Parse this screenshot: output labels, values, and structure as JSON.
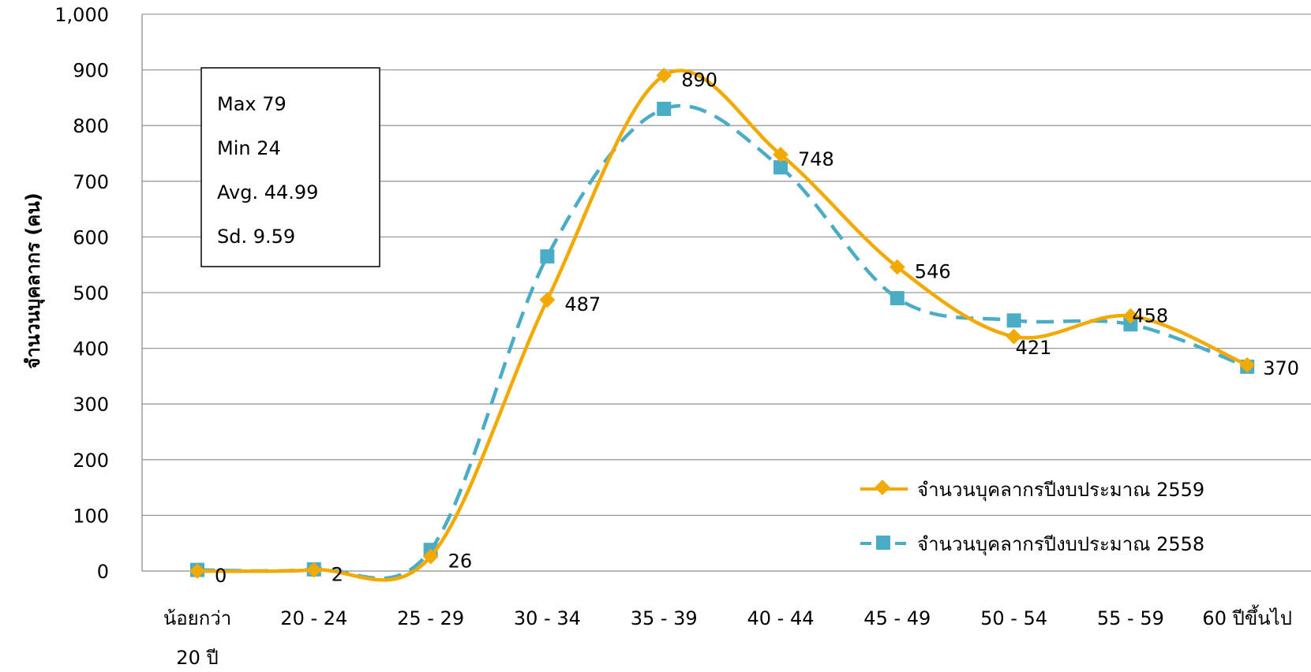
{
  "chart_data": {
    "type": "line",
    "title": "",
    "xlabel": "",
    "ylabel": "จำนวนบุคลากร (คน)",
    "ylim": [
      0,
      1000
    ],
    "yticks": [
      "0",
      "100",
      "200",
      "300",
      "400",
      "500",
      "600",
      "700",
      "800",
      "900",
      "1,000"
    ],
    "categories": [
      [
        "น้อยกว่า",
        "20 ปี"
      ],
      [
        "20 - 24"
      ],
      [
        "25 - 29"
      ],
      [
        "30 - 34"
      ],
      [
        "35 - 39"
      ],
      [
        "40 - 44"
      ],
      [
        "45 - 49"
      ],
      [
        "50 - 54"
      ],
      [
        "55 - 59"
      ],
      [
        "60 ปีขึ้นไป"
      ]
    ],
    "grid": true,
    "legend_position": "bottom-right",
    "series": [
      {
        "name": "จำนวนบุคลากรปีงบประมาณ 2559",
        "values": [
          0,
          2,
          26,
          487,
          890,
          748,
          546,
          421,
          458,
          370
        ],
        "labels": [
          "0",
          "2",
          "26",
          "487",
          "890",
          "748",
          "546",
          "421",
          "458",
          "370"
        ],
        "color": "#F2A900",
        "marker": "diamond",
        "dash": "solid"
      },
      {
        "name": "จำนวนบุคลากรปีงบประมาณ 2558",
        "values": [
          2,
          3,
          38,
          565,
          830,
          725,
          490,
          450,
          443,
          367
        ],
        "color": "#4BACC6",
        "marker": "square",
        "dash": "dashed"
      }
    ],
    "stats_box": [
      "Max  79",
      "Min  24",
      "Avg. 44.99",
      "Sd.  9.59"
    ]
  }
}
